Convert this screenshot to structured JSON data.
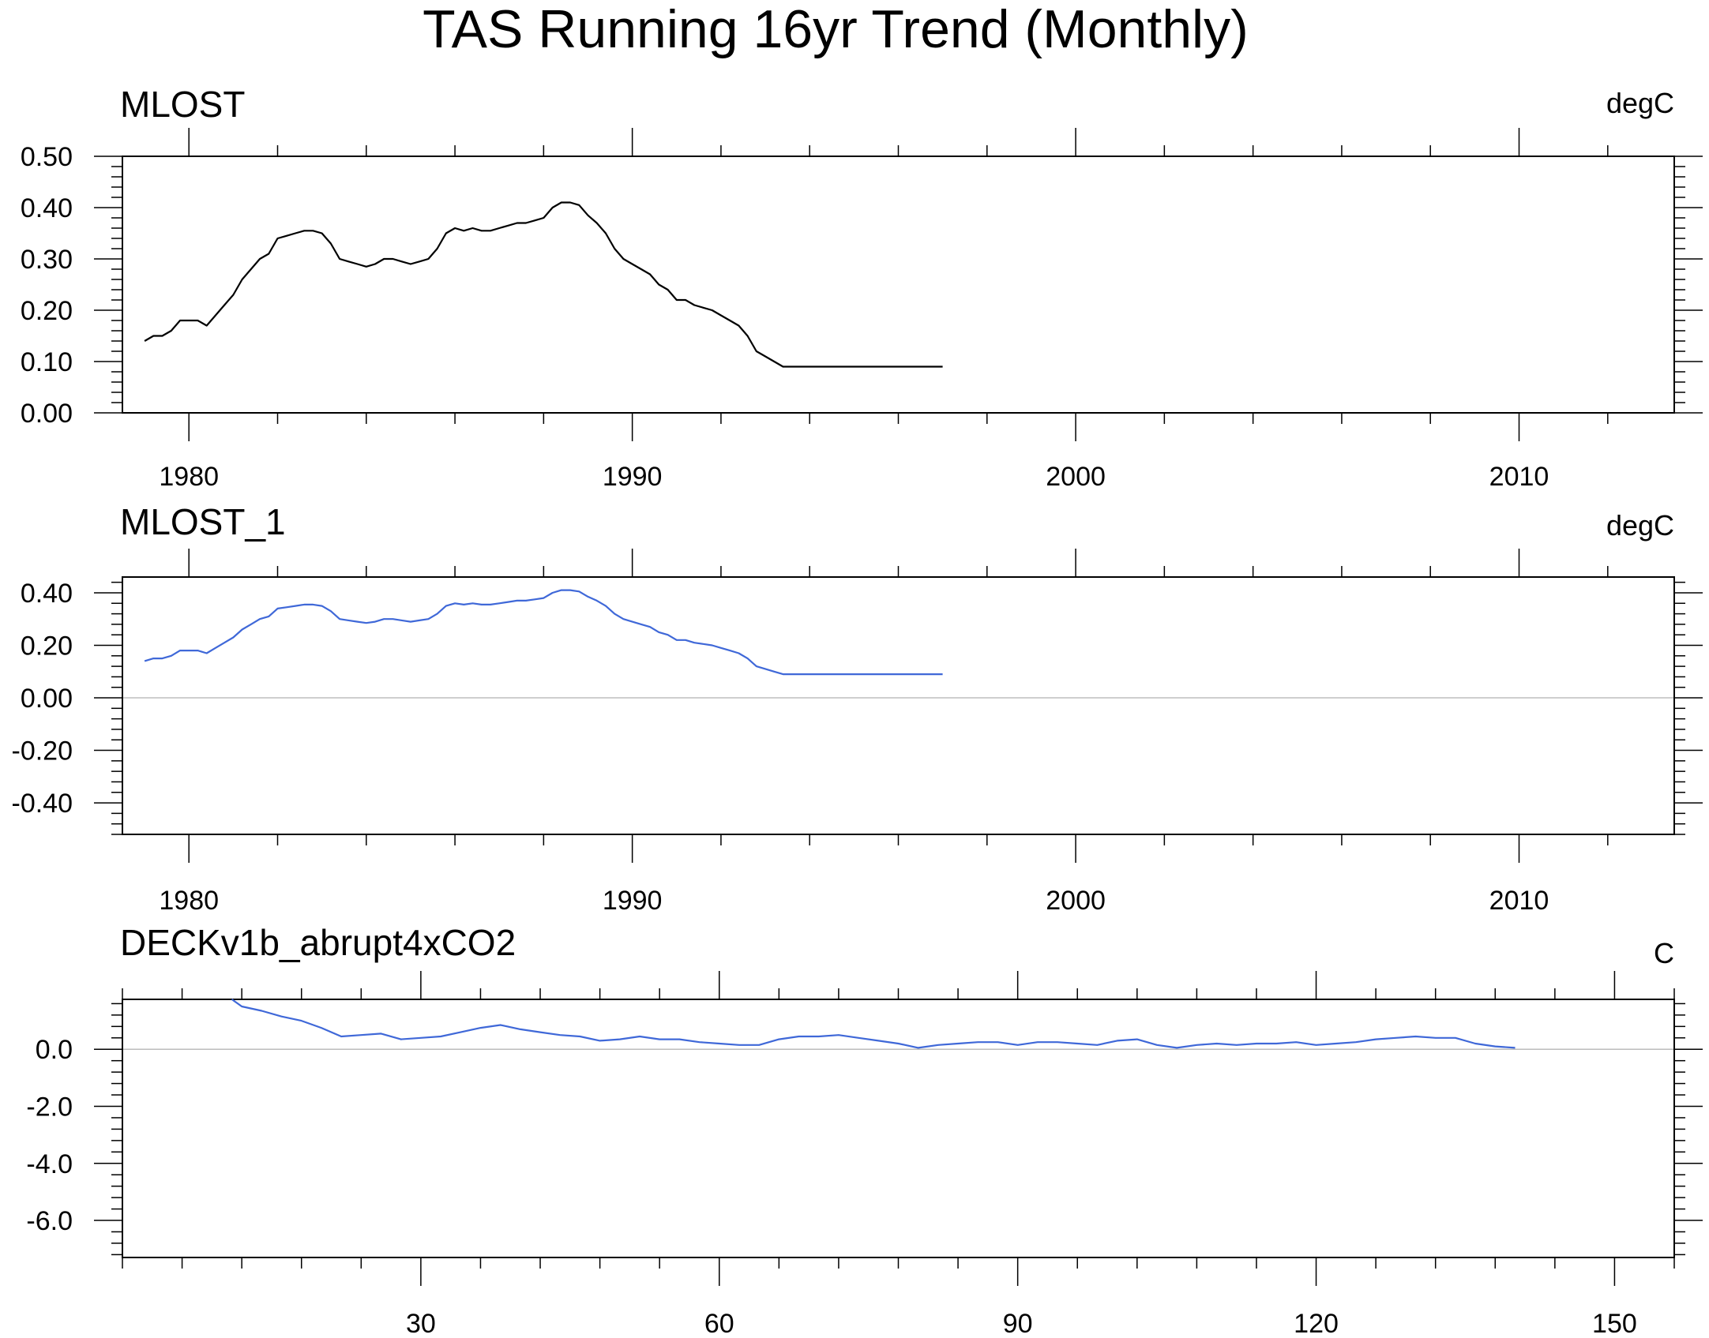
{
  "figure_title": "TAS Running 16yr Trend (Monthly)",
  "colors": {
    "mlost": "#000000",
    "mlost_1": "#3f68d8",
    "deck": "#3f68d8",
    "zero_line": "#bdbdbd"
  },
  "panels": [
    {
      "left_title": "MLOST",
      "right_title": "degC"
    },
    {
      "left_title": "MLOST_1",
      "right_title": "degC"
    },
    {
      "left_title": "DECKv1b_abrupt4xCO2",
      "right_title": "C"
    }
  ],
  "chart_data": [
    {
      "type": "line",
      "title": "MLOST",
      "units": "degC",
      "xlim": [
        1978.5,
        2013.5
      ],
      "ylim": [
        0.0,
        0.5
      ],
      "x_ticks": [
        1980,
        1990,
        2000,
        2010
      ],
      "x_tick_labels": [
        "1980",
        "1990",
        "2000",
        "2010"
      ],
      "y_ticks": [
        0.0,
        0.1,
        0.2,
        0.3,
        0.4,
        0.5
      ],
      "y_tick_labels": [
        "0.00",
        "0.10",
        "0.20",
        "0.30",
        "0.40",
        "0.50"
      ],
      "zero_line": false,
      "x": [
        1979.0,
        1979.2,
        1979.4,
        1979.6,
        1979.8,
        1980.0,
        1980.2,
        1980.4,
        1980.6,
        1980.8,
        1981.0,
        1981.2,
        1981.4,
        1981.6,
        1981.8,
        1982.0,
        1982.2,
        1982.4,
        1982.6,
        1982.8,
        1983.0,
        1983.2,
        1983.4,
        1983.6,
        1983.8,
        1984.0,
        1984.2,
        1984.4,
        1984.6,
        1984.8,
        1985.0,
        1985.2,
        1985.4,
        1985.6,
        1985.8,
        1986.0,
        1986.2,
        1986.4,
        1986.6,
        1986.8,
        1987.0,
        1987.2,
        1987.4,
        1987.6,
        1987.8,
        1988.0,
        1988.2,
        1988.4,
        1988.6,
        1988.8,
        1989.0,
        1989.2,
        1989.4,
        1989.6,
        1989.8,
        1990.0,
        1990.2,
        1990.4,
        1990.6,
        1990.8,
        1991.0,
        1991.2,
        1991.4,
        1991.6,
        1991.8,
        1992.0,
        1992.2,
        1992.4,
        1992.6,
        1992.8,
        1993.0,
        1993.2,
        1993.4,
        1993.6,
        1993.8,
        1994.0,
        1994.2,
        1994.4,
        1994.6,
        1994.8,
        1995.0,
        1995.2,
        1995.4,
        1995.6,
        1995.8,
        1996.0,
        1996.2,
        1996.4,
        1996.6,
        1996.8,
        1997.0
      ],
      "y": [
        0.14,
        0.15,
        0.15,
        0.16,
        0.18,
        0.18,
        0.18,
        0.17,
        0.19,
        0.21,
        0.23,
        0.26,
        0.28,
        0.3,
        0.31,
        0.34,
        0.345,
        0.35,
        0.355,
        0.355,
        0.35,
        0.33,
        0.3,
        0.295,
        0.29,
        0.285,
        0.29,
        0.3,
        0.3,
        0.295,
        0.29,
        0.295,
        0.3,
        0.32,
        0.35,
        0.36,
        0.355,
        0.36,
        0.355,
        0.355,
        0.36,
        0.365,
        0.37,
        0.37,
        0.375,
        0.38,
        0.4,
        0.41,
        0.41,
        0.405,
        0.385,
        0.37,
        0.35,
        0.32,
        0.3,
        0.29,
        0.28,
        0.27,
        0.25,
        0.24,
        0.22,
        0.22,
        0.21,
        0.205,
        0.2,
        0.19,
        0.18,
        0.17,
        0.15,
        0.12,
        0.11,
        0.1,
        0.09,
        0.09,
        0.09,
        0.09,
        0.09,
        0.09,
        0.09,
        0.09,
        0.09,
        0.09,
        0.09,
        0.09,
        0.09,
        0.09,
        0.09,
        0.09,
        0.09,
        0.09,
        0.09
      ]
    },
    {
      "type": "line",
      "title": "MLOST_1",
      "units": "degC",
      "xlim": [
        1978.5,
        2013.5
      ],
      "ylim": [
        -0.52,
        0.46
      ],
      "x_ticks": [
        1980,
        1990,
        2000,
        2010
      ],
      "x_tick_labels": [
        "1980",
        "1990",
        "2000",
        "2010"
      ],
      "y_ticks": [
        -0.4,
        -0.2,
        0.0,
        0.2,
        0.4
      ],
      "y_tick_labels": [
        "-0.40",
        "-0.20",
        "0.00",
        "0.20",
        "0.40"
      ],
      "zero_line": true,
      "x": [
        1979.0,
        1979.2,
        1979.4,
        1979.6,
        1979.8,
        1980.0,
        1980.2,
        1980.4,
        1980.6,
        1980.8,
        1981.0,
        1981.2,
        1981.4,
        1981.6,
        1981.8,
        1982.0,
        1982.2,
        1982.4,
        1982.6,
        1982.8,
        1983.0,
        1983.2,
        1983.4,
        1983.6,
        1983.8,
        1984.0,
        1984.2,
        1984.4,
        1984.6,
        1984.8,
        1985.0,
        1985.2,
        1985.4,
        1985.6,
        1985.8,
        1986.0,
        1986.2,
        1986.4,
        1986.6,
        1986.8,
        1987.0,
        1987.2,
        1987.4,
        1987.6,
        1987.8,
        1988.0,
        1988.2,
        1988.4,
        1988.6,
        1988.8,
        1989.0,
        1989.2,
        1989.4,
        1989.6,
        1989.8,
        1990.0,
        1990.2,
        1990.4,
        1990.6,
        1990.8,
        1991.0,
        1991.2,
        1991.4,
        1991.6,
        1991.8,
        1992.0,
        1992.2,
        1992.4,
        1992.6,
        1992.8,
        1993.0,
        1993.2,
        1993.4,
        1993.6,
        1993.8,
        1994.0,
        1994.2,
        1994.4,
        1994.6,
        1994.8,
        1995.0,
        1995.2,
        1995.4,
        1995.6,
        1995.8,
        1996.0,
        1996.2,
        1996.4,
        1996.6,
        1996.8,
        1997.0
      ],
      "y": [
        0.14,
        0.15,
        0.15,
        0.16,
        0.18,
        0.18,
        0.18,
        0.17,
        0.19,
        0.21,
        0.23,
        0.26,
        0.28,
        0.3,
        0.31,
        0.34,
        0.345,
        0.35,
        0.355,
        0.355,
        0.35,
        0.33,
        0.3,
        0.295,
        0.29,
        0.285,
        0.29,
        0.3,
        0.3,
        0.295,
        0.29,
        0.295,
        0.3,
        0.32,
        0.35,
        0.36,
        0.355,
        0.36,
        0.355,
        0.355,
        0.36,
        0.365,
        0.37,
        0.37,
        0.375,
        0.38,
        0.4,
        0.41,
        0.41,
        0.405,
        0.385,
        0.37,
        0.35,
        0.32,
        0.3,
        0.29,
        0.28,
        0.27,
        0.25,
        0.24,
        0.22,
        0.22,
        0.21,
        0.205,
        0.2,
        0.19,
        0.18,
        0.17,
        0.15,
        0.12,
        0.11,
        0.1,
        0.09,
        0.09,
        0.09,
        0.09,
        0.09,
        0.09,
        0.09,
        0.09,
        0.09,
        0.09,
        0.09,
        0.09,
        0.09,
        0.09,
        0.09,
        0.09,
        0.09,
        0.09,
        0.09
      ]
    },
    {
      "type": "line",
      "title": "DECKv1b_abrupt4xCO2",
      "units": "C",
      "xlim": [
        0,
        156
      ],
      "ylim": [
        -7.3,
        1.75
      ],
      "x_ticks": [
        30,
        60,
        90,
        120,
        150
      ],
      "x_tick_labels": [
        "30",
        "60",
        "90",
        "120",
        "150"
      ],
      "y_ticks": [
        -6.0,
        -4.0,
        -2.0,
        0.0
      ],
      "y_tick_labels": [
        "-6.0",
        "-4.0",
        "-2.0",
        "0.0"
      ],
      "zero_line": true,
      "x": [
        11,
        12,
        14,
        16,
        18,
        20,
        22,
        24,
        26,
        28,
        30,
        32,
        34,
        36,
        38,
        40,
        42,
        44,
        46,
        48,
        50,
        52,
        54,
        56,
        58,
        60,
        62,
        64,
        66,
        68,
        70,
        72,
        74,
        76,
        78,
        80,
        82,
        84,
        86,
        88,
        90,
        92,
        94,
        96,
        98,
        100,
        102,
        104,
        106,
        108,
        110,
        112,
        114,
        116,
        118,
        120,
        122,
        124,
        126,
        128,
        130,
        132,
        134,
        136,
        138,
        140
      ],
      "y": [
        1.75,
        1.5,
        1.35,
        1.15,
        1.0,
        0.75,
        0.45,
        0.5,
        0.55,
        0.35,
        0.4,
        0.45,
        0.6,
        0.75,
        0.85,
        0.7,
        0.6,
        0.5,
        0.45,
        0.3,
        0.35,
        0.45,
        0.35,
        0.35,
        0.25,
        0.2,
        0.15,
        0.15,
        0.35,
        0.45,
        0.45,
        0.5,
        0.4,
        0.3,
        0.2,
        0.05,
        0.15,
        0.2,
        0.25,
        0.25,
        0.15,
        0.25,
        0.25,
        0.2,
        0.15,
        0.3,
        0.35,
        0.15,
        0.05,
        0.15,
        0.2,
        0.15,
        0.2,
        0.2,
        0.25,
        0.15,
        0.2,
        0.25,
        0.35,
        0.4,
        0.45,
        0.4,
        0.4,
        0.2,
        0.1,
        0.05
      ]
    }
  ]
}
